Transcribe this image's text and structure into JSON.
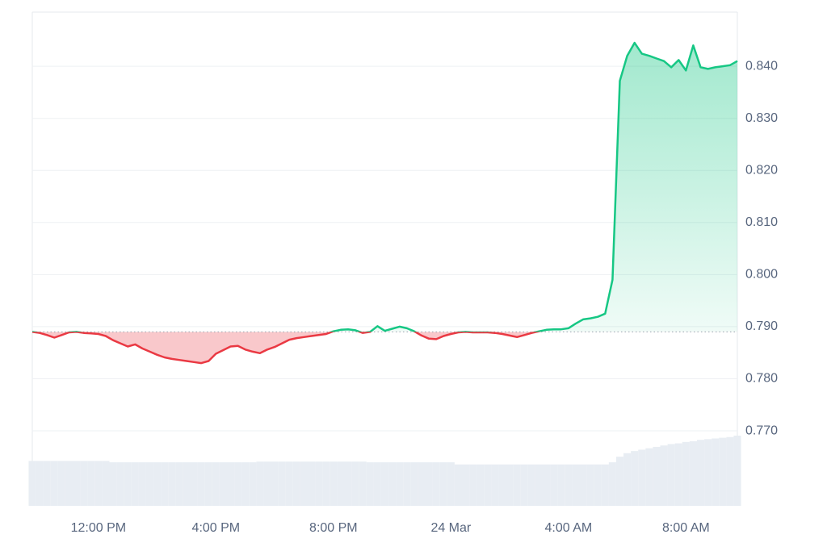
{
  "chart_data": {
    "type": "line",
    "categories": [
      null,
      null,
      null,
      null,
      null,
      null,
      null,
      null,
      null,
      "12:00 PM",
      null,
      null,
      null,
      null,
      null,
      null,
      null,
      null,
      null,
      null,
      null,
      null,
      null,
      null,
      null,
      "4:00 PM",
      null,
      null,
      null,
      null,
      null,
      null,
      null,
      null,
      null,
      null,
      null,
      null,
      null,
      null,
      null,
      "8:00 PM",
      null,
      null,
      null,
      null,
      null,
      null,
      null,
      null,
      null,
      null,
      null,
      null,
      null,
      null,
      null,
      "24 Mar",
      null,
      null,
      null,
      null,
      null,
      null,
      null,
      null,
      null,
      null,
      null,
      null,
      null,
      null,
      null,
      "4:00 AM",
      null,
      null,
      null,
      null,
      null,
      null,
      null,
      null,
      null,
      null,
      null,
      null,
      null,
      null,
      null,
      "8:00 AM",
      null,
      null,
      null,
      null,
      null,
      null,
      null
    ],
    "values": [
      0.789,
      0.7888,
      0.7884,
      0.7879,
      0.7884,
      0.7889,
      0.789,
      0.7888,
      0.7887,
      0.7886,
      0.7882,
      0.7874,
      0.7868,
      0.7862,
      0.7866,
      0.7858,
      0.7852,
      0.7846,
      0.7841,
      0.7838,
      0.7836,
      0.7834,
      0.7832,
      0.783,
      0.7834,
      0.7848,
      0.7855,
      0.7862,
      0.7863,
      0.7856,
      0.7852,
      0.7849,
      0.7856,
      0.7861,
      0.7868,
      0.7875,
      0.7878,
      0.788,
      0.7882,
      0.7884,
      0.7886,
      0.7891,
      0.7894,
      0.7895,
      0.7893,
      0.7888,
      0.789,
      0.7901,
      0.7892,
      0.7896,
      0.79,
      0.7897,
      0.7891,
      0.7883,
      0.7877,
      0.7876,
      0.7882,
      0.7886,
      0.7889,
      0.789,
      0.7889,
      0.7889,
      0.7889,
      0.7888,
      0.7886,
      0.7883,
      0.788,
      0.7884,
      0.7888,
      0.7891,
      0.7894,
      0.7895,
      0.7895,
      0.7897,
      0.7906,
      0.7914,
      0.7916,
      0.7919,
      0.7925,
      0.799,
      0.8372,
      0.842,
      0.8445,
      0.8424,
      0.842,
      0.8415,
      0.841,
      0.8398,
      0.8412,
      0.8392,
      0.844,
      0.8398,
      0.8395,
      0.8398,
      0.84,
      0.8402,
      0.841
    ],
    "volume": [
      64,
      64,
      64,
      64,
      64,
      64,
      64,
      64,
      64,
      64,
      64,
      62,
      62,
      62,
      62,
      62,
      62,
      62,
      62,
      62,
      62,
      62,
      62,
      62,
      62,
      62,
      62,
      62,
      62,
      62,
      62,
      63,
      63,
      63,
      63,
      63,
      63,
      63,
      63,
      63,
      63,
      63,
      63,
      63,
      63,
      63,
      62,
      62,
      62,
      62,
      62,
      62,
      62,
      62,
      62,
      62,
      62,
      62,
      59,
      59,
      59,
      59,
      59,
      59,
      59,
      59,
      59,
      59,
      59,
      59,
      59,
      59,
      59,
      59,
      59,
      59,
      59,
      59,
      59,
      62,
      70,
      75,
      78,
      80,
      82,
      84,
      86,
      88,
      89,
      91,
      92,
      94,
      95,
      96,
      97,
      98,
      100
    ],
    "volume_lim": [
      0,
      100
    ],
    "baseline": 0.789,
    "up_color": "#16c784",
    "down_color": "#ea3943",
    "volume_color": "#e8edf3",
    "ylim": [
      0.7556,
      0.8504
    ],
    "yticks": [
      {
        "value": 0.77,
        "label": "0.770"
      },
      {
        "value": 0.78,
        "label": "0.780"
      },
      {
        "value": 0.79,
        "label": "0.790"
      },
      {
        "value": 0.8,
        "label": "0.800"
      },
      {
        "value": 0.81,
        "label": "0.810"
      },
      {
        "value": 0.82,
        "label": "0.820"
      },
      {
        "value": 0.83,
        "label": "0.830"
      },
      {
        "value": 0.84,
        "label": "0.840"
      }
    ],
    "grid": true
  }
}
